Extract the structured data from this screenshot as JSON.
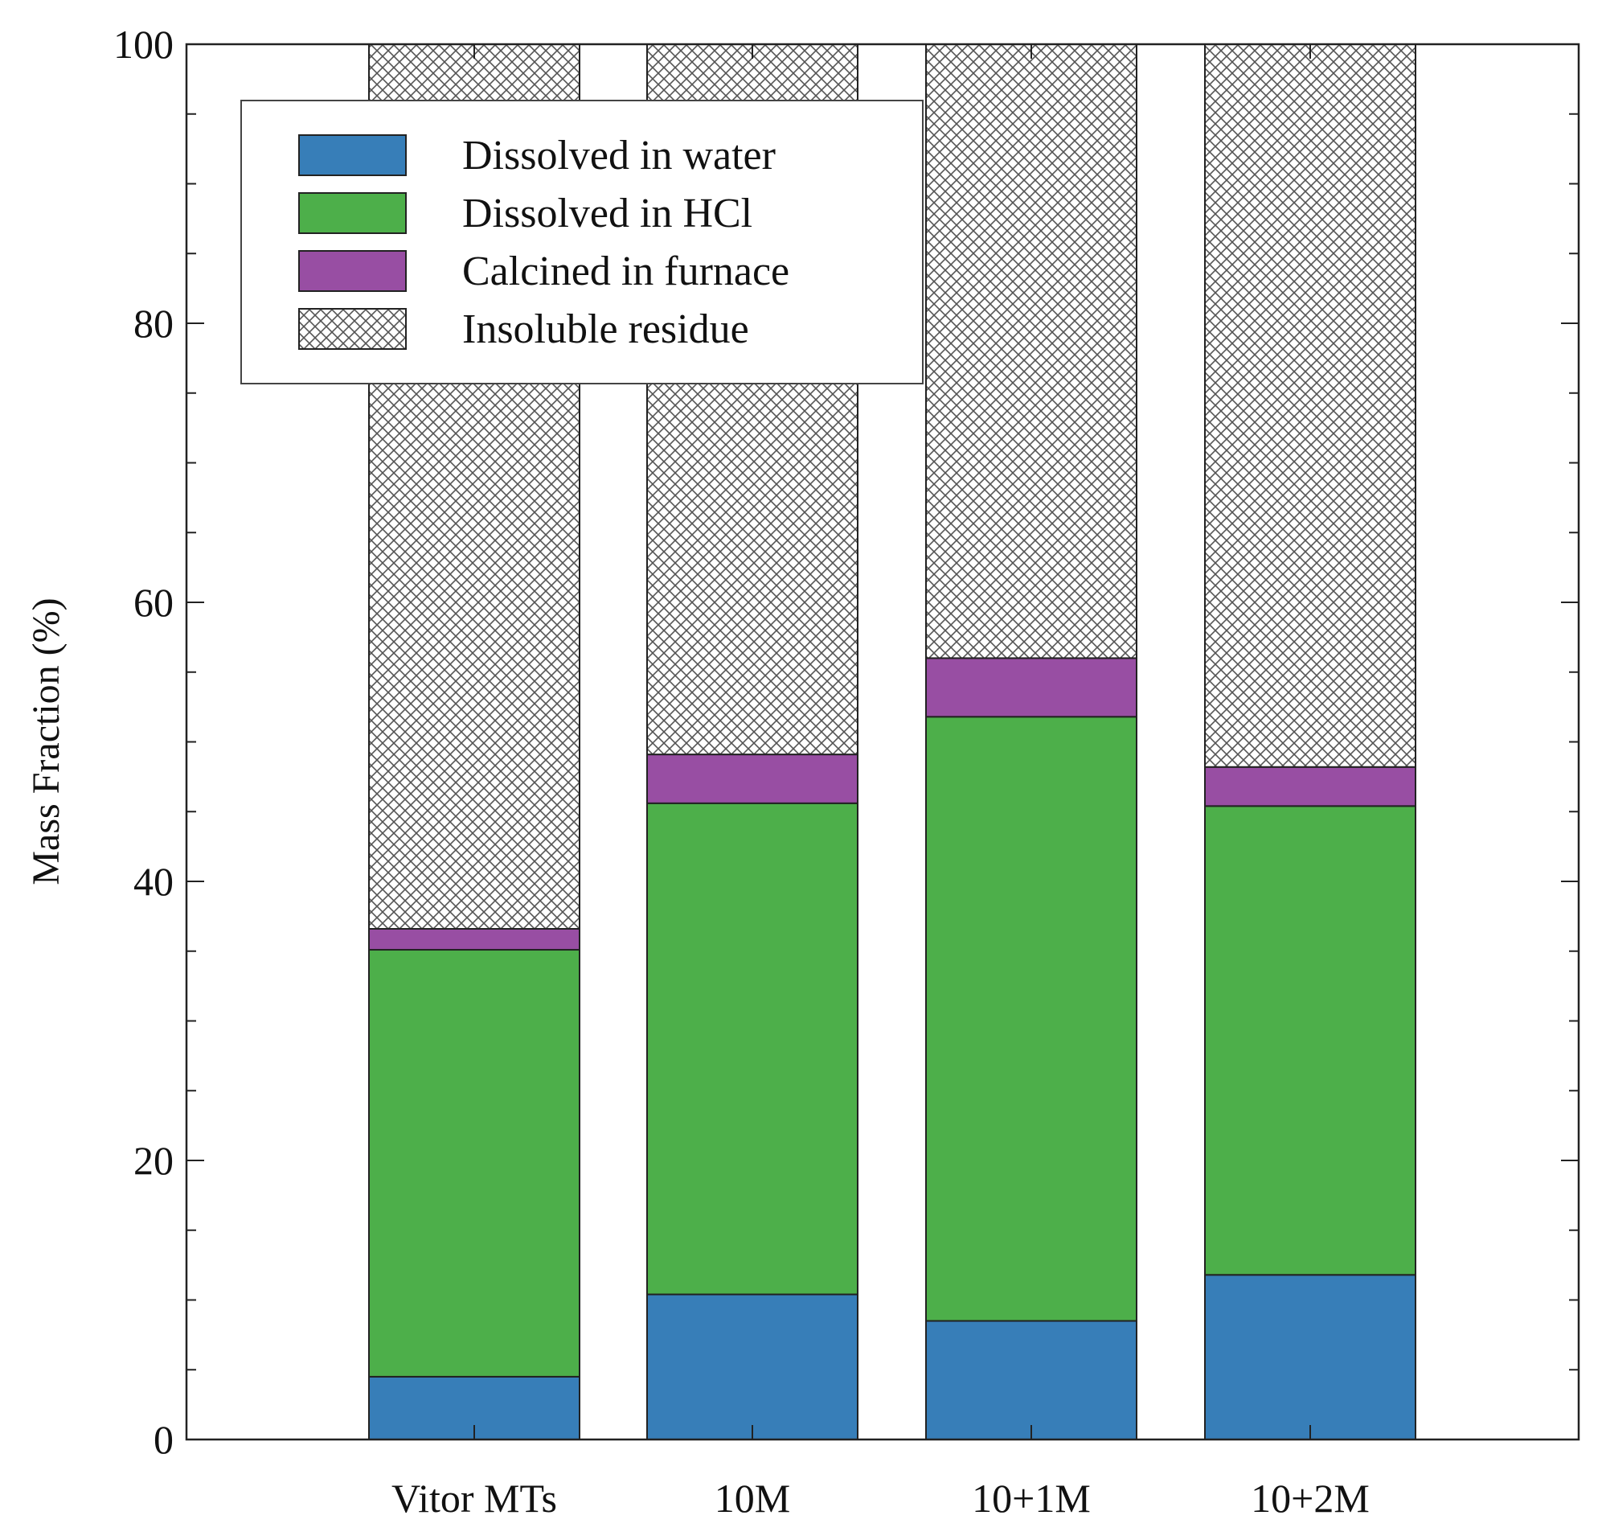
{
  "chart_data": {
    "type": "bar",
    "stacked": true,
    "categories": [
      "Vitor MTs",
      "10M",
      "10+1M",
      "10+2M"
    ],
    "series": [
      {
        "name": "Dissolved in water",
        "values": [
          4.5,
          10.4,
          8.5,
          11.8
        ],
        "color": "#377eb8",
        "pattern": "solid"
      },
      {
        "name": "Dissolved in HCl",
        "values": [
          30.6,
          35.2,
          43.3,
          33.6
        ],
        "color": "#4daf4a",
        "pattern": "solid"
      },
      {
        "name": "Calcined in furnace",
        "values": [
          1.5,
          3.5,
          4.2,
          2.8
        ],
        "color": "#984ea3",
        "pattern": "solid"
      },
      {
        "name": "Insoluble residue",
        "values": [
          63.4,
          50.9,
          44.0,
          51.8
        ],
        "color": "#ffffff",
        "pattern": "crosshatch"
      }
    ],
    "title": "",
    "xlabel": "",
    "ylabel": "Mass Fraction (%)",
    "ylim": [
      0,
      100
    ],
    "yticks": [
      0,
      20,
      40,
      60,
      80,
      100
    ],
    "legend_position": "top-left"
  }
}
